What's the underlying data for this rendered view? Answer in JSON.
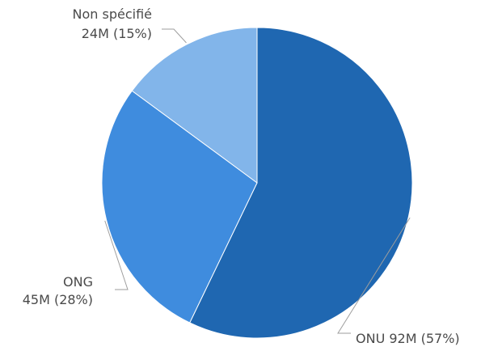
{
  "chart_data": {
    "type": "pie",
    "series": [
      {
        "category": "ONU",
        "value_label": "92M (57%)",
        "value": 92,
        "percent": 57,
        "color": "#1f67b1"
      },
      {
        "category": "ONG",
        "value_label": "45M (28%)",
        "value": 45,
        "percent": 28,
        "color": "#3f8cde"
      },
      {
        "category": "Non spécifié",
        "value_label": "24M (15%)",
        "value": 24,
        "percent": 15,
        "color": "#82b5ea"
      }
    ],
    "legend": "none",
    "start_angle": "12 o'clock",
    "direction": "clockwise"
  }
}
